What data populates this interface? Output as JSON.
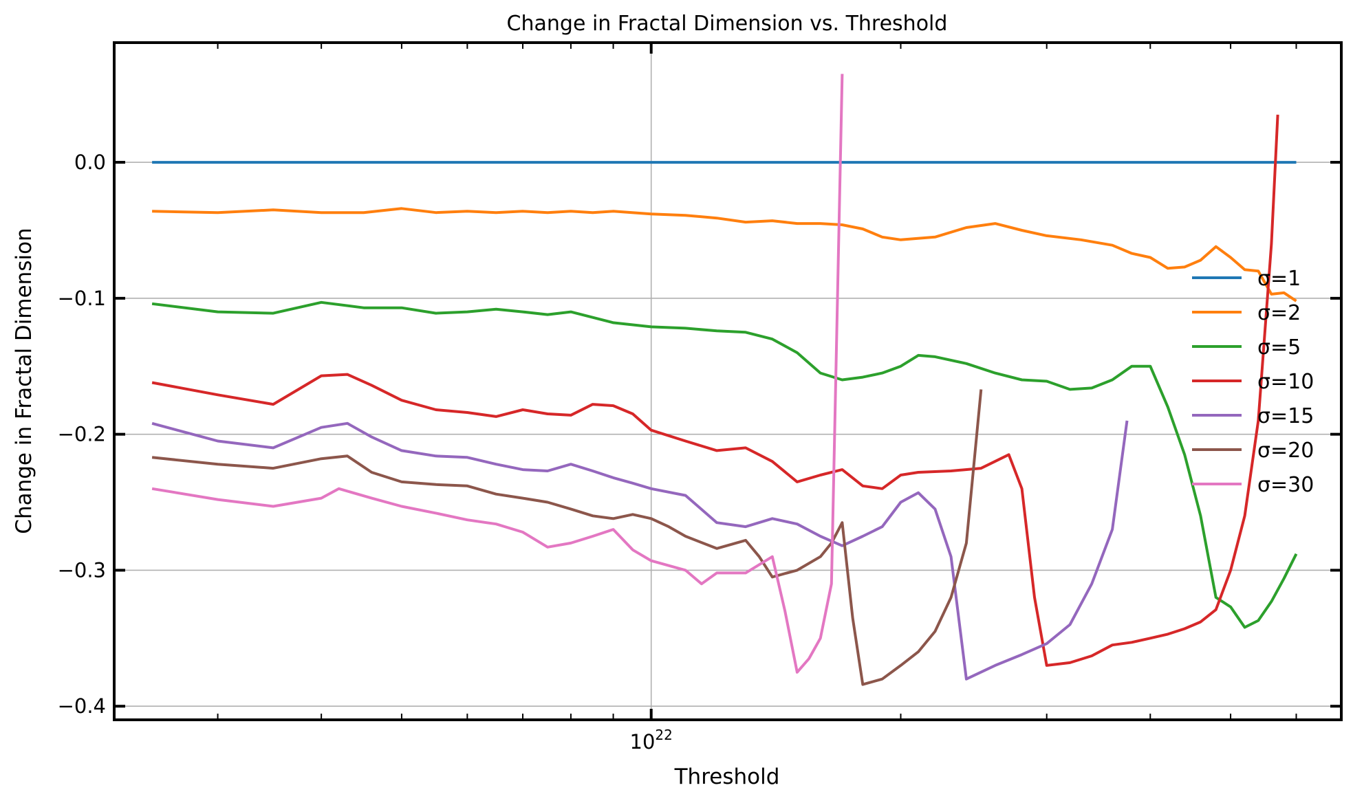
{
  "chart_data": {
    "type": "line",
    "title": "Change in Fractal Dimension vs. Threshold",
    "xlabel": "Threshold",
    "ylabel": "Change in Fractal Dimension",
    "xscale": "log",
    "xlim": [
      2.25e+21,
      6.8e+22
    ],
    "ylim": [
      -0.41,
      0.088
    ],
    "x_ticks": [
      {
        "value": 1e+22,
        "label": "10^22",
        "base": "10",
        "exp": "22"
      }
    ],
    "y_ticks": [
      {
        "value": 0.0,
        "label": "0.0"
      },
      {
        "value": -0.1,
        "label": "−0.1"
      },
      {
        "value": -0.2,
        "label": "−0.2"
      },
      {
        "value": -0.3,
        "label": "−0.3"
      },
      {
        "value": -0.4,
        "label": "−0.4"
      }
    ],
    "grid": true,
    "legend_position": "center-right",
    "series": [
      {
        "name": "σ=1",
        "color": "#1f77b4",
        "points": [
          [
            2.5e+21,
            0.0
          ],
          [
            6e+22,
            0.0
          ]
        ]
      },
      {
        "name": "σ=2",
        "color": "#ff7f0e",
        "points": [
          [
            2.5e+21,
            -0.036
          ],
          [
            3e+21,
            -0.037
          ],
          [
            3.5e+21,
            -0.035
          ],
          [
            4e+21,
            -0.037
          ],
          [
            4.5e+21,
            -0.037
          ],
          [
            5e+21,
            -0.034
          ],
          [
            5.5e+21,
            -0.037
          ],
          [
            6e+21,
            -0.036
          ],
          [
            6.5e+21,
            -0.037
          ],
          [
            7e+21,
            -0.036
          ],
          [
            7.5e+21,
            -0.037
          ],
          [
            8e+21,
            -0.036
          ],
          [
            8.5e+21,
            -0.037
          ],
          [
            9e+21,
            -0.036
          ],
          [
            1e+22,
            -0.038
          ],
          [
            1.1e+22,
            -0.039
          ],
          [
            1.2e+22,
            -0.041
          ],
          [
            1.3e+22,
            -0.044
          ],
          [
            1.4e+22,
            -0.043
          ],
          [
            1.5e+22,
            -0.045
          ],
          [
            1.6e+22,
            -0.045
          ],
          [
            1.7e+22,
            -0.046
          ],
          [
            1.8e+22,
            -0.049
          ],
          [
            1.9e+22,
            -0.055
          ],
          [
            2e+22,
            -0.057
          ],
          [
            2.2e+22,
            -0.055
          ],
          [
            2.4e+22,
            -0.048
          ],
          [
            2.6e+22,
            -0.045
          ],
          [
            2.8e+22,
            -0.05
          ],
          [
            3e+22,
            -0.054
          ],
          [
            3.3e+22,
            -0.057
          ],
          [
            3.6e+22,
            -0.061
          ],
          [
            3.8e+22,
            -0.067
          ],
          [
            4e+22,
            -0.07
          ],
          [
            4.2e+22,
            -0.078
          ],
          [
            4.4e+22,
            -0.077
          ],
          [
            4.6e+22,
            -0.072
          ],
          [
            4.8e+22,
            -0.062
          ],
          [
            5e+22,
            -0.07
          ],
          [
            5.2e+22,
            -0.079
          ],
          [
            5.4e+22,
            -0.08
          ],
          [
            5.6e+22,
            -0.097
          ],
          [
            5.8e+22,
            -0.096
          ],
          [
            6e+22,
            -0.102
          ]
        ]
      },
      {
        "name": "σ=5",
        "color": "#2ca02c",
        "points": [
          [
            2.5e+21,
            -0.104
          ],
          [
            3e+21,
            -0.11
          ],
          [
            3.5e+21,
            -0.111
          ],
          [
            4e+21,
            -0.103
          ],
          [
            4.5e+21,
            -0.107
          ],
          [
            5e+21,
            -0.107
          ],
          [
            5.5e+21,
            -0.111
          ],
          [
            6e+21,
            -0.11
          ],
          [
            6.5e+21,
            -0.108
          ],
          [
            7e+21,
            -0.11
          ],
          [
            7.5e+21,
            -0.112
          ],
          [
            8e+21,
            -0.11
          ],
          [
            9e+21,
            -0.118
          ],
          [
            1e+22,
            -0.121
          ],
          [
            1.1e+22,
            -0.122
          ],
          [
            1.2e+22,
            -0.124
          ],
          [
            1.3e+22,
            -0.125
          ],
          [
            1.4e+22,
            -0.13
          ],
          [
            1.5e+22,
            -0.14
          ],
          [
            1.6e+22,
            -0.155
          ],
          [
            1.7e+22,
            -0.16
          ],
          [
            1.8e+22,
            -0.158
          ],
          [
            1.9e+22,
            -0.155
          ],
          [
            2e+22,
            -0.15
          ],
          [
            2.1e+22,
            -0.142
          ],
          [
            2.2e+22,
            -0.143
          ],
          [
            2.4e+22,
            -0.148
          ],
          [
            2.6e+22,
            -0.155
          ],
          [
            2.8e+22,
            -0.16
          ],
          [
            3e+22,
            -0.161
          ],
          [
            3.2e+22,
            -0.167
          ],
          [
            3.4e+22,
            -0.166
          ],
          [
            3.6e+22,
            -0.16
          ],
          [
            3.8e+22,
            -0.15
          ],
          [
            4e+22,
            -0.15
          ],
          [
            4.2e+22,
            -0.18
          ],
          [
            4.4e+22,
            -0.215
          ],
          [
            4.6e+22,
            -0.26
          ],
          [
            4.8e+22,
            -0.32
          ],
          [
            5e+22,
            -0.327
          ],
          [
            5.2e+22,
            -0.342
          ],
          [
            5.4e+22,
            -0.337
          ],
          [
            5.6e+22,
            -0.323
          ],
          [
            5.8e+22,
            -0.306
          ],
          [
            6e+22,
            -0.288
          ]
        ]
      },
      {
        "name": "σ=10",
        "color": "#d62728",
        "points": [
          [
            2.5e+21,
            -0.162
          ],
          [
            3e+21,
            -0.171
          ],
          [
            3.5e+21,
            -0.178
          ],
          [
            4e+21,
            -0.157
          ],
          [
            4.3e+21,
            -0.156
          ],
          [
            4.6e+21,
            -0.164
          ],
          [
            5e+21,
            -0.175
          ],
          [
            5.5e+21,
            -0.182
          ],
          [
            6e+21,
            -0.184
          ],
          [
            6.5e+21,
            -0.187
          ],
          [
            7e+21,
            -0.182
          ],
          [
            7.5e+21,
            -0.185
          ],
          [
            8e+21,
            -0.186
          ],
          [
            8.5e+21,
            -0.178
          ],
          [
            9e+21,
            -0.179
          ],
          [
            9.5e+21,
            -0.185
          ],
          [
            1e+22,
            -0.197
          ],
          [
            1.1e+22,
            -0.205
          ],
          [
            1.2e+22,
            -0.212
          ],
          [
            1.3e+22,
            -0.21
          ],
          [
            1.4e+22,
            -0.22
          ],
          [
            1.5e+22,
            -0.235
          ],
          [
            1.6e+22,
            -0.23
          ],
          [
            1.7e+22,
            -0.226
          ],
          [
            1.8e+22,
            -0.238
          ],
          [
            1.9e+22,
            -0.24
          ],
          [
            2e+22,
            -0.23
          ],
          [
            2.1e+22,
            -0.228
          ],
          [
            2.3e+22,
            -0.227
          ],
          [
            2.5e+22,
            -0.225
          ],
          [
            2.7e+22,
            -0.215
          ],
          [
            2.8e+22,
            -0.24
          ],
          [
            2.9e+22,
            -0.32
          ],
          [
            3e+22,
            -0.37
          ],
          [
            3.2e+22,
            -0.368
          ],
          [
            3.4e+22,
            -0.363
          ],
          [
            3.6e+22,
            -0.355
          ],
          [
            3.8e+22,
            -0.353
          ],
          [
            4e+22,
            -0.35
          ],
          [
            4.2e+22,
            -0.347
          ],
          [
            4.4e+22,
            -0.343
          ],
          [
            4.6e+22,
            -0.338
          ],
          [
            4.8e+22,
            -0.329
          ],
          [
            5e+22,
            -0.3
          ],
          [
            5.2e+22,
            -0.26
          ],
          [
            5.4e+22,
            -0.19
          ],
          [
            5.6e+22,
            -0.06
          ],
          [
            5.7e+22,
            0.035
          ]
        ]
      },
      {
        "name": "σ=15",
        "color": "#9467bd",
        "points": [
          [
            2.5e+21,
            -0.192
          ],
          [
            3e+21,
            -0.205
          ],
          [
            3.5e+21,
            -0.21
          ],
          [
            4e+21,
            -0.195
          ],
          [
            4.3e+21,
            -0.192
          ],
          [
            4.6e+21,
            -0.202
          ],
          [
            5e+21,
            -0.212
          ],
          [
            5.5e+21,
            -0.216
          ],
          [
            6e+21,
            -0.217
          ],
          [
            6.5e+21,
            -0.222
          ],
          [
            7e+21,
            -0.226
          ],
          [
            7.5e+21,
            -0.227
          ],
          [
            8e+21,
            -0.222
          ],
          [
            8.5e+21,
            -0.227
          ],
          [
            9e+21,
            -0.232
          ],
          [
            9.5e+21,
            -0.236
          ],
          [
            1e+22,
            -0.24
          ],
          [
            1.1e+22,
            -0.245
          ],
          [
            1.2e+22,
            -0.265
          ],
          [
            1.3e+22,
            -0.268
          ],
          [
            1.4e+22,
            -0.262
          ],
          [
            1.5e+22,
            -0.266
          ],
          [
            1.6e+22,
            -0.275
          ],
          [
            1.7e+22,
            -0.282
          ],
          [
            1.8e+22,
            -0.275
          ],
          [
            1.9e+22,
            -0.268
          ],
          [
            2e+22,
            -0.25
          ],
          [
            2.1e+22,
            -0.243
          ],
          [
            2.2e+22,
            -0.255
          ],
          [
            2.3e+22,
            -0.29
          ],
          [
            2.4e+22,
            -0.38
          ],
          [
            2.6e+22,
            -0.37
          ],
          [
            2.8e+22,
            -0.362
          ],
          [
            3e+22,
            -0.354
          ],
          [
            3.2e+22,
            -0.34
          ],
          [
            3.4e+22,
            -0.31
          ],
          [
            3.6e+22,
            -0.27
          ],
          [
            3.75e+22,
            -0.19
          ]
        ]
      },
      {
        "name": "σ=20",
        "color": "#8c564b",
        "points": [
          [
            2.5e+21,
            -0.217
          ],
          [
            3e+21,
            -0.222
          ],
          [
            3.5e+21,
            -0.225
          ],
          [
            4e+21,
            -0.218
          ],
          [
            4.3e+21,
            -0.216
          ],
          [
            4.6e+21,
            -0.228
          ],
          [
            5e+21,
            -0.235
          ],
          [
            5.5e+21,
            -0.237
          ],
          [
            6e+21,
            -0.238
          ],
          [
            6.5e+21,
            -0.244
          ],
          [
            7e+21,
            -0.247
          ],
          [
            7.5e+21,
            -0.25
          ],
          [
            8e+21,
            -0.255
          ],
          [
            8.5e+21,
            -0.26
          ],
          [
            9e+21,
            -0.262
          ],
          [
            9.5e+21,
            -0.259
          ],
          [
            1e+22,
            -0.262
          ],
          [
            1.05e+22,
            -0.268
          ],
          [
            1.1e+22,
            -0.275
          ],
          [
            1.2e+22,
            -0.284
          ],
          [
            1.3e+22,
            -0.278
          ],
          [
            1.35e+22,
            -0.29
          ],
          [
            1.4e+22,
            -0.305
          ],
          [
            1.5e+22,
            -0.3
          ],
          [
            1.6e+22,
            -0.29
          ],
          [
            1.65e+22,
            -0.28
          ],
          [
            1.7e+22,
            -0.265
          ],
          [
            1.75e+22,
            -0.335
          ],
          [
            1.8e+22,
            -0.384
          ],
          [
            1.9e+22,
            -0.38
          ],
          [
            2e+22,
            -0.37
          ],
          [
            2.1e+22,
            -0.36
          ],
          [
            2.2e+22,
            -0.345
          ],
          [
            2.3e+22,
            -0.32
          ],
          [
            2.4e+22,
            -0.28
          ],
          [
            2.5e+22,
            -0.167
          ]
        ]
      },
      {
        "name": "σ=30",
        "color": "#e377c2",
        "points": [
          [
            2.5e+21,
            -0.24
          ],
          [
            3e+21,
            -0.248
          ],
          [
            3.5e+21,
            -0.253
          ],
          [
            4e+21,
            -0.247
          ],
          [
            4.2e+21,
            -0.24
          ],
          [
            4.6e+21,
            -0.247
          ],
          [
            5e+21,
            -0.253
          ],
          [
            5.5e+21,
            -0.258
          ],
          [
            6e+21,
            -0.263
          ],
          [
            6.5e+21,
            -0.266
          ],
          [
            7e+21,
            -0.272
          ],
          [
            7.5e+21,
            -0.283
          ],
          [
            8e+21,
            -0.28
          ],
          [
            8.5e+21,
            -0.275
          ],
          [
            9e+21,
            -0.27
          ],
          [
            9.5e+21,
            -0.285
          ],
          [
            1e+22,
            -0.293
          ],
          [
            1.1e+22,
            -0.3
          ],
          [
            1.15e+22,
            -0.31
          ],
          [
            1.2e+22,
            -0.302
          ],
          [
            1.3e+22,
            -0.302
          ],
          [
            1.4e+22,
            -0.29
          ],
          [
            1.45e+22,
            -0.33
          ],
          [
            1.5e+22,
            -0.375
          ],
          [
            1.55e+22,
            -0.365
          ],
          [
            1.6e+22,
            -0.35
          ],
          [
            1.65e+22,
            -0.31
          ],
          [
            1.7e+22,
            0.065
          ]
        ]
      }
    ]
  }
}
